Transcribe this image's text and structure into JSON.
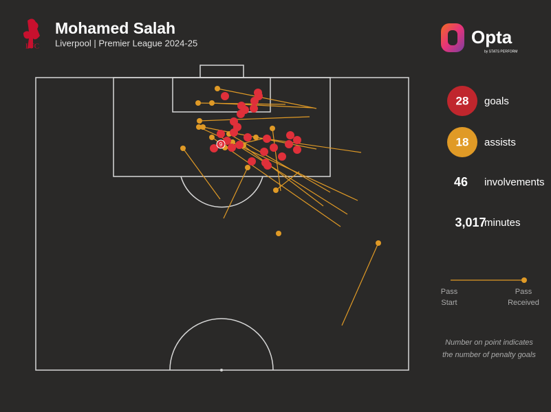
{
  "header": {
    "title": "Mohamed Salah",
    "subtitle": "Liverpool | Premier League 2024-25",
    "crest": "LFC",
    "brand": "Opta",
    "brand_sub": "by STATS PERFORM"
  },
  "penalty_label": "9",
  "stats": [
    {
      "value": "28",
      "label": "goals"
    },
    {
      "value": "18",
      "label": "assists"
    },
    {
      "value": "46",
      "label": "involvements"
    },
    {
      "value": "3,017",
      "label": "minutes"
    }
  ],
  "legend": {
    "start": [
      "Pass",
      "Start"
    ],
    "end": [
      "Pass",
      "Received"
    ]
  },
  "note": [
    "Number on point indicates",
    "the number of penalty goals"
  ]
}
